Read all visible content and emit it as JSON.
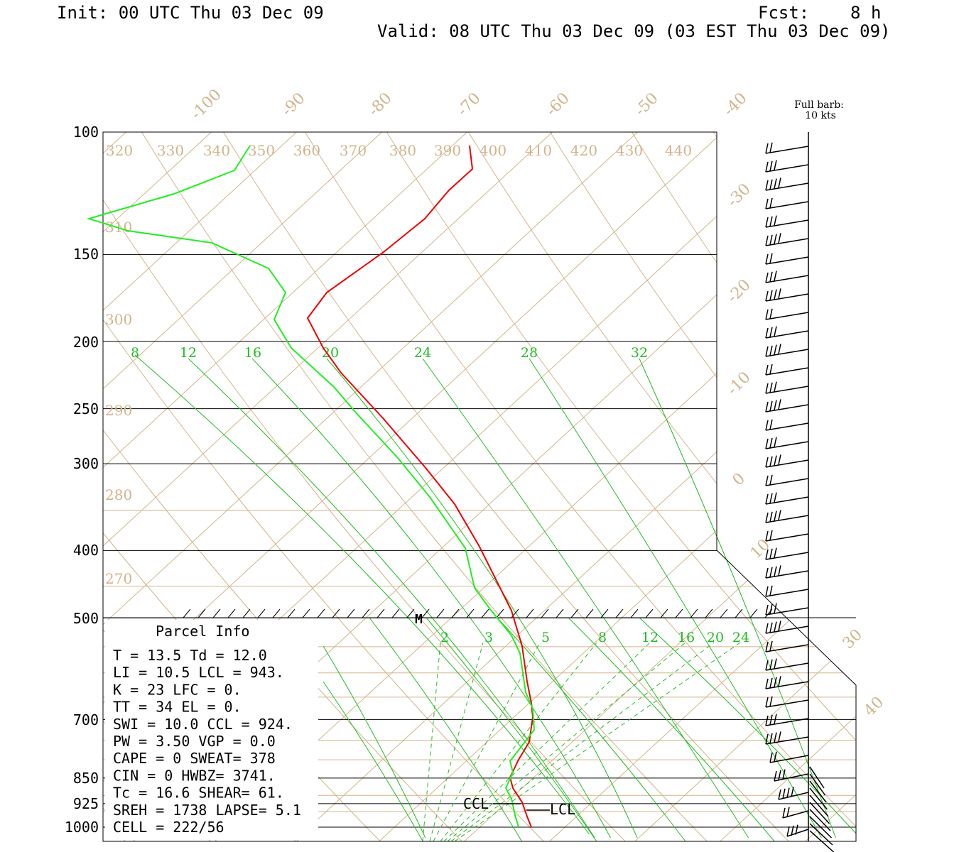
{
  "header": {
    "init": "Init: 00 UTC Thu 03 Dec 09",
    "fcst": "Fcst:    8 h",
    "valid": "Valid: 08 UTC Thu 03 Dec 09 (03 EST Thu 03 Dec 09)"
  },
  "barb_legend": {
    "line1": "Full barb:",
    "line2": "10 kts"
  },
  "parcel_info": {
    "title": "Parcel Info",
    "rows": [
      "T  =     13.5 Td =  12.0",
      "LI =     10.5 LCL =  943.",
      "K  =       23 LFC =    0.",
      "TT =       34 EL  =    0.",
      "SWI =    10.0 CCL =  924.",
      "PW =     3.50 VGP =   0.0",
      "CAPE =      0 SWEAT=  378",
      "CIN =       0 HWBZ= 3741.",
      "Tc =     16.6 SHEAR=  61.",
      "SREH =   1738 LAPSE=  5.1",
      "CELL = 222/56"
    ]
  },
  "chart_data": {
    "type": "line",
    "chart_kind": "skew-T log-P sounding",
    "y_axis": {
      "label": "",
      "ticks": [
        "100",
        "150",
        "200",
        "250",
        "300",
        "400",
        "500",
        "700",
        "850",
        "925",
        "1000"
      ]
    },
    "isotherm_labels": [
      "-100",
      "-90",
      "-80",
      "-70",
      "-60",
      "-50",
      "-40",
      "-30",
      "-20",
      "-10",
      "0",
      "10",
      "30",
      "40"
    ],
    "theta_labels_top": [
      "320",
      "330",
      "340",
      "350",
      "360",
      "370",
      "380",
      "390",
      "400",
      "410",
      "420",
      "430",
      "440"
    ],
    "theta_labels_left": [
      "310",
      "300",
      "290",
      "280",
      "270"
    ],
    "mixing_ratio_labels_upper": [
      "8",
      "12",
      "16",
      "20",
      "24",
      "28",
      "32"
    ],
    "mixing_ratio_labels_lower": [
      "2",
      "3",
      "5",
      "8",
      "12",
      "16",
      "20",
      "24"
    ],
    "level_labels": {
      "ccl": "CCL",
      "lcl": "LCL",
      "m": "M"
    },
    "series": [
      {
        "name": "",
        "color": "#ee0000",
        "role": "temperature"
      },
      {
        "name": "",
        "color": "#22ee22",
        "role": "dewpoint"
      }
    ],
    "colors": {
      "grid": "#d2b48c",
      "mixing_ratio": "#22bb22",
      "temperature": "#ee0000",
      "dewpoint": "#22ee22"
    }
  }
}
